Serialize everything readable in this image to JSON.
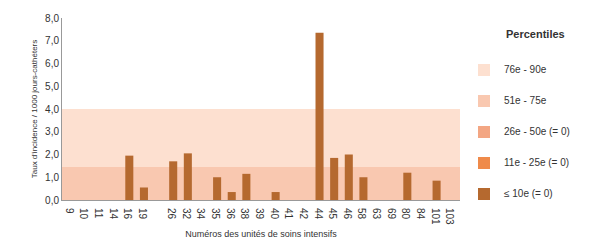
{
  "chart_data": {
    "type": "bar",
    "y_label": "Taux d'incidence / 1000 jours-cathéters",
    "x_label": "Numéros des unités de soins intensifs",
    "categories": [
      "9",
      "10",
      "11",
      "14",
      "16",
      "19",
      null,
      "26",
      "32",
      "34",
      "35",
      "36",
      "38",
      "39",
      "40",
      "41",
      "42",
      "44",
      "45",
      "46",
      "58",
      "63",
      "69",
      "80",
      "84",
      "101",
      "103"
    ],
    "values": [
      0,
      0,
      0,
      0,
      1.95,
      0.55,
      0,
      1.7,
      2.05,
      0,
      1.0,
      0.35,
      1.15,
      0,
      0.35,
      0,
      0,
      7.35,
      1.85,
      2.0,
      1.0,
      0,
      0,
      1.2,
      0,
      0.85,
      0
    ],
    "color": "#b5692f",
    "ylim": [
      0,
      8
    ],
    "yticks": [
      {
        "value": 0,
        "label": "0,0"
      },
      {
        "value": 1,
        "label": "1,0"
      },
      {
        "value": 2,
        "label": "2,0"
      },
      {
        "value": 3,
        "label": "3,0"
      },
      {
        "value": 4,
        "label": "4,0"
      },
      {
        "value": 5,
        "label": "5,0"
      },
      {
        "value": 6,
        "label": "6,0"
      },
      {
        "value": 7,
        "label": "7,0"
      },
      {
        "value": 8,
        "label": "8,0"
      }
    ],
    "grid": false,
    "legend_title": "Percentiles",
    "bands": [
      {
        "name": "76e - 90e",
        "from": 1.45,
        "to": 4.0,
        "color": "#fde0d0"
      },
      {
        "name": "51e - 75e",
        "from": 0,
        "to": 1.45,
        "color": "#f9c8b0"
      },
      {
        "name": "26e - 50e (= 0)",
        "from": 0,
        "to": 0,
        "color": "#f3a683"
      },
      {
        "name": "11e - 25e (= 0)",
        "from": 0,
        "to": 0,
        "color": "#ef8a4a"
      },
      {
        "name": "≤ 10e (= 0)",
        "from": 0,
        "to": 0,
        "color": "#b5692f"
      }
    ]
  }
}
